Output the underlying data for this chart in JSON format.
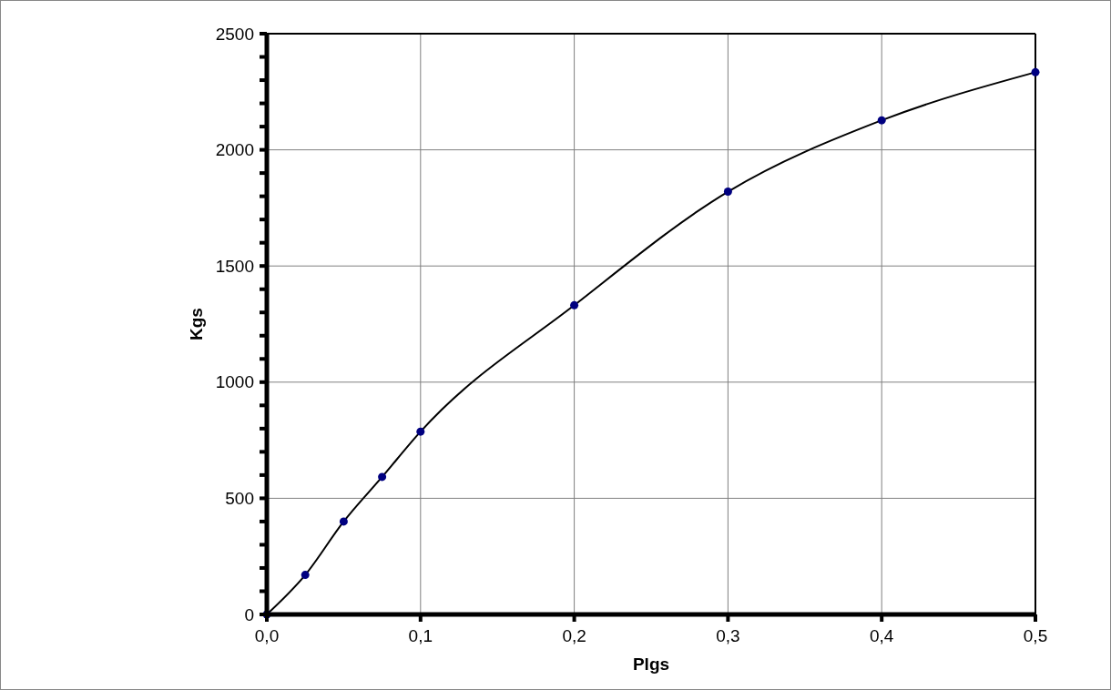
{
  "chart_data": {
    "type": "line",
    "xlabel": "Plgs",
    "ylabel": "Kgs",
    "x": [
      0,
      0.025,
      0.05,
      0.075,
      0.1,
      0.2,
      0.3,
      0.4,
      0.5
    ],
    "series": [
      {
        "color": "#000080",
        "values": [
          0,
          170,
          400,
          592,
          787,
          1331,
          1820,
          2127,
          2334
        ]
      }
    ],
    "xlim": [
      0,
      0.5
    ],
    "ylim": [
      0,
      2500
    ],
    "xticks": [
      {
        "value": 0,
        "label": "0,0"
      },
      {
        "value": 0.1,
        "label": "0,1"
      },
      {
        "value": 0.2,
        "label": "0,2"
      },
      {
        "value": 0.3,
        "label": "0,3"
      },
      {
        "value": 0.4,
        "label": "0,4"
      },
      {
        "value": 0.5,
        "label": "0,5"
      }
    ],
    "yticks": [
      0,
      {
        "value": 100,
        "label": null
      },
      {
        "value": 200,
        "label": null
      },
      {
        "value": 300,
        "label": null
      },
      {
        "value": 400,
        "label": null
      },
      500,
      {
        "value": 600,
        "label": null
      },
      {
        "value": 700,
        "label": null
      },
      {
        "value": 800,
        "label": null
      },
      {
        "value": 900,
        "label": null
      },
      1000,
      {
        "value": 1100,
        "label": null
      },
      {
        "value": 1200,
        "label": null
      },
      {
        "value": 1300,
        "label": null
      },
      {
        "value": 1400,
        "label": null
      },
      1500,
      {
        "value": 1600,
        "label": null
      },
      {
        "value": 1700,
        "label": null
      },
      {
        "value": 1800,
        "label": null
      },
      {
        "value": 1900,
        "label": null
      },
      2000,
      {
        "value": 2100,
        "label": null
      },
      {
        "value": 2200,
        "label": null
      },
      {
        "value": 2300,
        "label": null
      },
      {
        "value": 2400,
        "label": null
      },
      2500
    ],
    "grid": true,
    "marker": "circle",
    "line_style": "solid"
  }
}
